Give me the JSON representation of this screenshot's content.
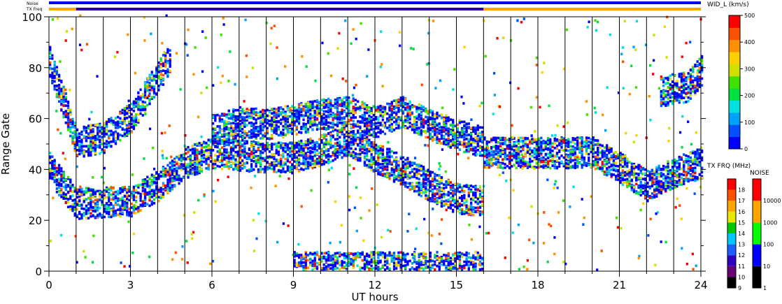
{
  "chart_data": {
    "type": "heatmap",
    "xlabel": "UT hours",
    "ylabel": "Range Gate",
    "xlim": [
      0,
      24
    ],
    "ylim": [
      0,
      100
    ],
    "x_ticks": [
      0,
      3,
      6,
      9,
      12,
      15,
      18,
      21,
      24
    ],
    "y_ticks": [
      0,
      20,
      40,
      60,
      80,
      100
    ],
    "hour_grid_lines": [
      1,
      2,
      3,
      4,
      5,
      6,
      7,
      8,
      9,
      10,
      11,
      12,
      13,
      14,
      15,
      16,
      17,
      18,
      19,
      20,
      21,
      22,
      23
    ],
    "top_bars": {
      "noise_label": "Noise",
      "txfreq_label": "TX Freq",
      "noise_segments": [
        {
          "from": 0,
          "to": 24,
          "color": "#0000ee"
        }
      ],
      "txfreq_segments": [
        {
          "from": 0,
          "to": 1.0,
          "color": "#ffa500"
        },
        {
          "from": 1.0,
          "to": 16.0,
          "color": "#2a00a0"
        },
        {
          "from": 16.0,
          "to": 24,
          "color": "#ffa500"
        }
      ]
    },
    "echo_bands": [
      {
        "name": "lower band",
        "points": [
          [
            0,
            40
          ],
          [
            1,
            26
          ],
          [
            3,
            27
          ],
          [
            4,
            33
          ],
          [
            5,
            42
          ],
          [
            6,
            46
          ],
          [
            7,
            45
          ],
          [
            8,
            44
          ],
          [
            9,
            44
          ],
          [
            10,
            47
          ],
          [
            11,
            51
          ],
          [
            12,
            44
          ],
          [
            13,
            39
          ],
          [
            14,
            33
          ],
          [
            15,
            28
          ],
          [
            16,
            27
          ]
        ]
      },
      {
        "name": "upper band",
        "points": [
          [
            6,
            55
          ],
          [
            7,
            58
          ],
          [
            8,
            57
          ],
          [
            9,
            59
          ],
          [
            10,
            61
          ],
          [
            11,
            62
          ],
          [
            12,
            58
          ],
          [
            13,
            62
          ],
          [
            14,
            57
          ],
          [
            15,
            53
          ],
          [
            16,
            50
          ]
        ]
      },
      {
        "name": "early band",
        "points": [
          [
            0,
            82
          ],
          [
            1,
            50
          ],
          [
            2,
            52
          ],
          [
            3,
            60
          ],
          [
            4,
            76
          ],
          [
            4.5,
            84
          ]
        ]
      },
      {
        "name": "late band",
        "points": [
          [
            16,
            46
          ],
          [
            18,
            46
          ],
          [
            20,
            46
          ],
          [
            21,
            40
          ],
          [
            22,
            33
          ],
          [
            23,
            38
          ],
          [
            24,
            42
          ]
        ]
      },
      {
        "name": "late top band",
        "points": [
          [
            22.5,
            70
          ],
          [
            23.5,
            72
          ],
          [
            24,
            78
          ]
        ]
      },
      {
        "name": "low echoes",
        "points": [
          [
            9,
            1
          ],
          [
            16,
            1
          ]
        ]
      }
    ],
    "colorbars": [
      {
        "title": "WID_L (km/s)",
        "type": "velocity",
        "range": [
          0,
          500
        ],
        "tick_labels": [
          "0",
          "100",
          "200",
          "300",
          "400",
          "500"
        ],
        "colors": [
          "#0000ff",
          "#0050ff",
          "#00a0ff",
          "#00e0e0",
          "#00e040",
          "#40e000",
          "#d0e000",
          "#ffd000",
          "#ff9000",
          "#ff5000",
          "#ff0000"
        ]
      },
      {
        "title": "TX FRQ (MHz)",
        "type": "discrete",
        "tick_labels": [
          "9",
          "10",
          "11",
          "12",
          "13",
          "14",
          "15",
          "16",
          "17",
          "18"
        ],
        "colors": [
          "#000000",
          "#6a0078",
          "#3000c0",
          "#1e60ff",
          "#00c8ff",
          "#00c800",
          "#e8e800",
          "#ffa500",
          "#ff5000",
          "#ff0000"
        ]
      },
      {
        "title": "NOISE",
        "type": "log",
        "tick_labels": [
          "1",
          "10",
          "100",
          "1000",
          "10000"
        ],
        "colors": [
          "#000000",
          "#0000ff",
          "#00ff00",
          "#ffa500",
          "#ff0000"
        ]
      }
    ]
  }
}
